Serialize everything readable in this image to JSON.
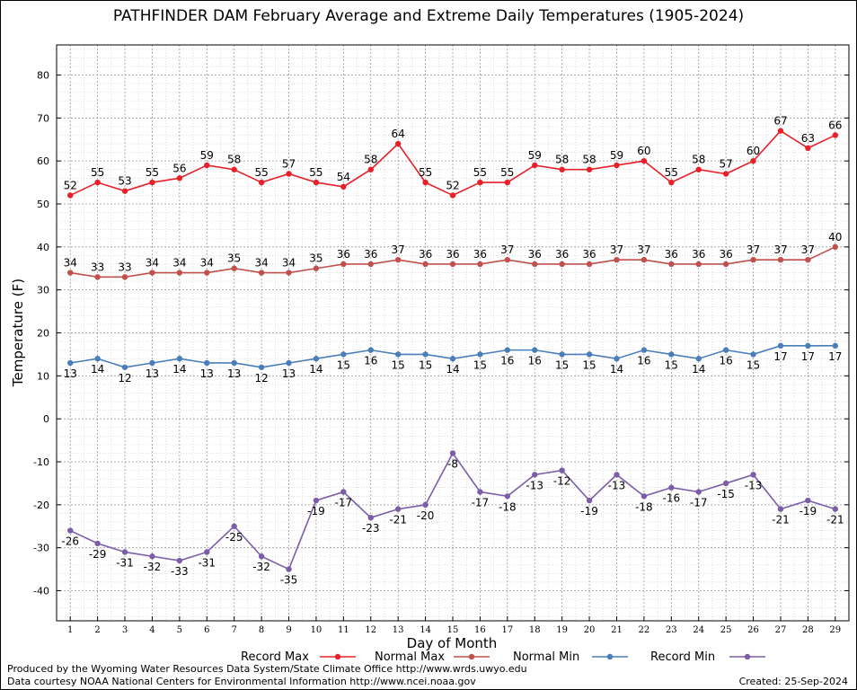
{
  "chart_data": {
    "type": "line",
    "title": "PATHFINDER DAM February Average and Extreme Daily Temperatures (1905-2024)",
    "xlabel": "Day of Month",
    "ylabel": "Temperature (F)",
    "ylim": [
      -47,
      87
    ],
    "yticks": [
      -40,
      -30,
      -20,
      -10,
      0,
      10,
      20,
      30,
      40,
      50,
      60,
      70,
      80
    ],
    "x": [
      1,
      2,
      3,
      4,
      5,
      6,
      7,
      8,
      9,
      10,
      11,
      12,
      13,
      14,
      15,
      16,
      17,
      18,
      19,
      20,
      21,
      22,
      23,
      24,
      25,
      26,
      27,
      28,
      29
    ],
    "grid": true,
    "legend_position": "bottom",
    "series": [
      {
        "name": "Record Max",
        "color": "#e8202a",
        "label_position": "above",
        "values": [
          52,
          55,
          53,
          55,
          56,
          59,
          58,
          55,
          57,
          55,
          54,
          58,
          64,
          55,
          52,
          55,
          55,
          59,
          58,
          58,
          59,
          60,
          55,
          58,
          57,
          60,
          67,
          63,
          66
        ]
      },
      {
        "name": "Normal Max",
        "color": "#c0504d",
        "label_position": "above",
        "values": [
          34,
          33,
          33,
          34,
          34,
          34,
          35,
          34,
          34,
          35,
          36,
          36,
          37,
          36,
          36,
          36,
          37,
          36,
          36,
          36,
          37,
          37,
          36,
          36,
          36,
          37,
          37,
          37,
          40
        ]
      },
      {
        "name": "Normal Min",
        "color": "#4a7ebb",
        "label_position": "below",
        "values": [
          13,
          14,
          12,
          13,
          14,
          13,
          13,
          12,
          13,
          14,
          15,
          16,
          15,
          15,
          14,
          15,
          16,
          16,
          15,
          15,
          14,
          16,
          15,
          14,
          16,
          15,
          17,
          17,
          17
        ]
      },
      {
        "name": "Record Min",
        "color": "#7b5ea7",
        "label_position": "below",
        "values": [
          -26,
          -29,
          -31,
          -32,
          -33,
          -31,
          -25,
          -32,
          -35,
          -19,
          -17,
          -23,
          -21,
          -20,
          -8,
          -17,
          -18,
          -13,
          -12,
          -19,
          -13,
          -18,
          -16,
          -17,
          -15,
          -13,
          -21,
          -19,
          -21
        ]
      }
    ]
  },
  "footer": {
    "produced_by": "Produced by the Wyoming Water Resources Data System/State Climate Office http://www.wrds.uwyo.edu",
    "courtesy": "Data courtesy NOAA National Centers for Environmental Information http://www.ncei.noaa.gov",
    "created": "Created:  25-Sep-2024"
  }
}
